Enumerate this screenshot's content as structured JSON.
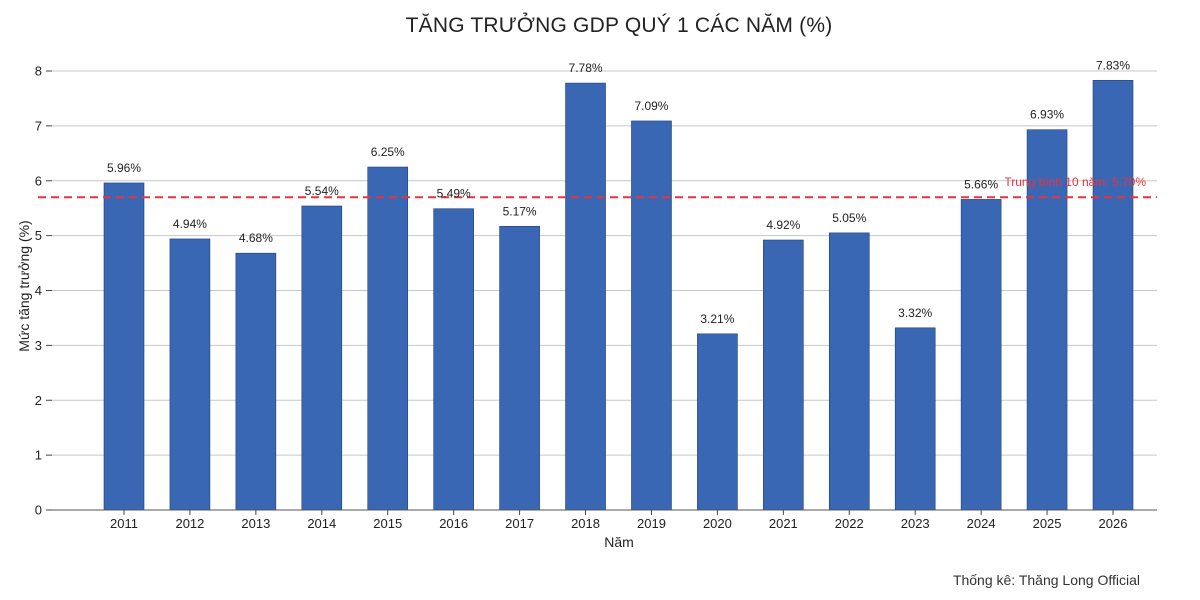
{
  "chart_data": {
    "type": "bar",
    "title": "TĂNG TRƯỞNG GDP QUÝ 1 CÁC NĂM (%)",
    "xlabel": "Năm",
    "ylabel": "Mức tăng trưởng (%)",
    "ylim": [
      0,
      8
    ],
    "yticks": [
      0,
      1,
      2,
      3,
      4,
      5,
      6,
      7,
      8
    ],
    "grid": true,
    "categories": [
      "2011",
      "2012",
      "2013",
      "2014",
      "2015",
      "2016",
      "2017",
      "2018",
      "2019",
      "2020",
      "2021",
      "2022",
      "2023",
      "2024",
      "2025",
      "2026"
    ],
    "values": [
      5.96,
      4.94,
      4.68,
      5.54,
      6.25,
      5.49,
      5.17,
      7.78,
      7.09,
      3.21,
      4.92,
      5.05,
      3.32,
      5.66,
      6.93,
      7.83
    ],
    "data_labels": [
      "5.96%",
      "4.94%",
      "4.68%",
      "5.54%",
      "6.25%",
      "5.49%",
      "5.17%",
      "7.78%",
      "7.09%",
      "3.21%",
      "4.92%",
      "5.05%",
      "3.32%",
      "5.66%",
      "6.93%",
      "7.83%"
    ],
    "bar_color": "#3A67B4",
    "average_line": {
      "value": 5.7,
      "label": "Trung bình 10 năm: 5.70%",
      "color": "#E8333C",
      "style": "dashed"
    },
    "credit": "Thống kê: Thăng Long Official"
  }
}
